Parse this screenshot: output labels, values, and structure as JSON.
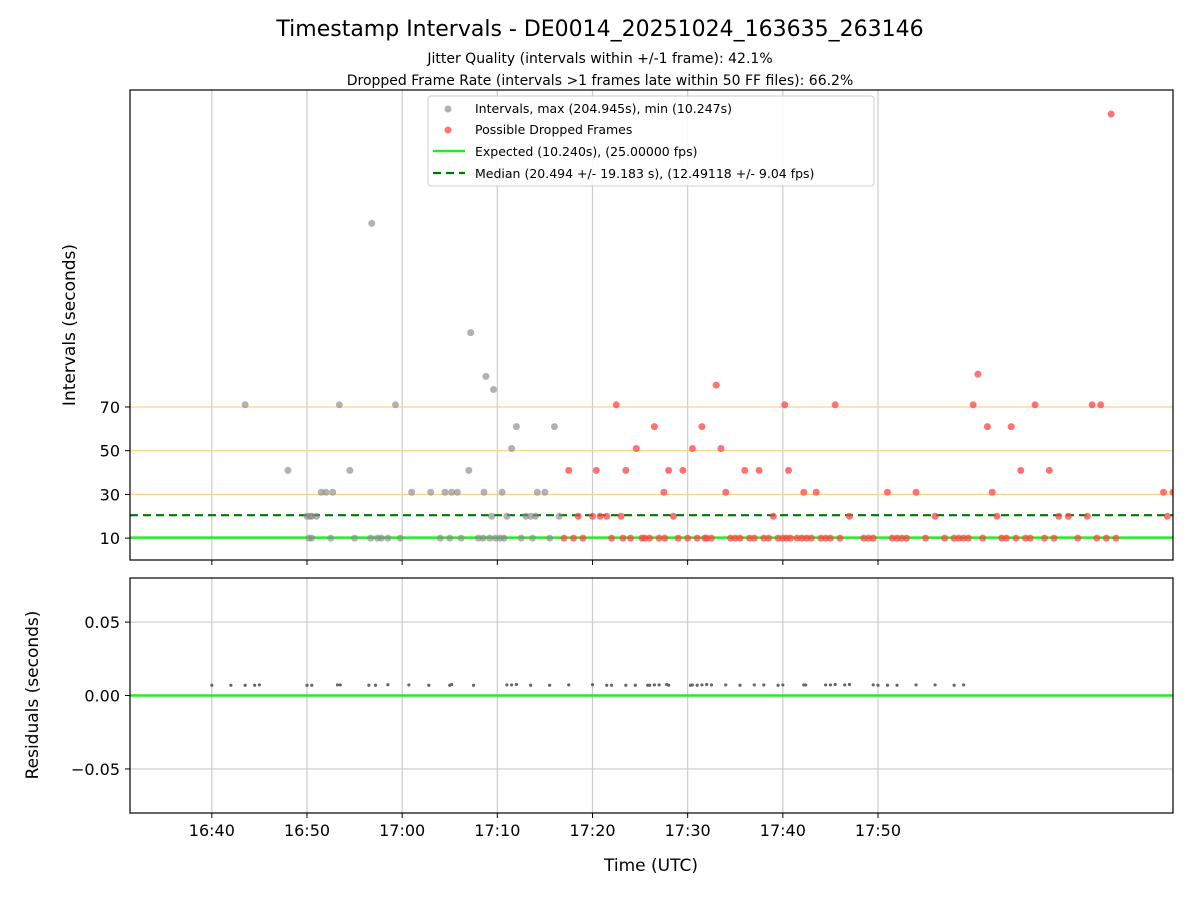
{
  "chart_data": [
    {
      "type": "scatter",
      "title": "Timestamp Intervals - DE0014_20251024_163635_263146",
      "subtitle_lines": [
        "Jitter Quality (intervals within +/-1 frame): 42.1%",
        "Dropped Frame Rate (intervals >1 frames late within 50 FF files): 66.2%"
      ],
      "ylabel": "Intervals (seconds)",
      "xlim": [
        -386,
        710
      ],
      "ylim": [
        0,
        215
      ],
      "yticks": [
        10,
        30,
        50,
        70
      ],
      "ytick_labels": [
        "10",
        "30",
        "50",
        "70"
      ],
      "grid": "vertical at x ticks",
      "reference_lines_y": [
        30,
        50,
        70
      ],
      "reference_line_color": "#ffd280",
      "legend_position": "top-center",
      "expected_line": {
        "name": "Expected (10.240s), (25.00000 fps)",
        "y": 10.24,
        "color": "#22ee22"
      },
      "median_line": {
        "name": "Median (20.494 +/- 19.183 s), (12.49118 +/- 9.04 fps)",
        "y": 20.494,
        "color": "#007700"
      },
      "series": [
        {
          "name": "Intervals, max (204.945s), min (10.247s)",
          "color": "#888888",
          "x": [
            -265,
            -220,
            -200,
            -195,
            -198,
            -197,
            -195,
            -190,
            -185,
            -180,
            -175,
            -173,
            -166,
            -155,
            -150,
            -133,
            -132,
            -126,
            -122,
            -115,
            -107,
            -102,
            -90,
            -70,
            -60,
            -55,
            -50,
            -48,
            -42,
            -38,
            -30,
            -28,
            -20,
            -15,
            -14,
            -12,
            -8,
            -6,
            -4,
            -2,
            3,
            5,
            7,
            10,
            15,
            20,
            25,
            30,
            35,
            37,
            40,
            42,
            50,
            55,
            60,
            65
          ],
          "y": [
            71,
            41,
            20,
            20,
            10,
            20,
            10,
            20,
            31,
            31,
            10,
            31,
            71,
            41,
            10,
            10,
            154,
            10,
            10,
            10,
            71,
            10,
            31,
            31,
            10,
            31,
            10,
            31,
            31,
            10,
            41,
            104,
            10,
            10,
            31,
            84,
            10,
            20,
            78,
            10,
            10,
            31,
            10,
            20,
            51,
            61,
            10,
            20,
            20,
            10,
            20,
            31,
            31,
            10,
            61,
            20
          ]
        },
        {
          "name": "Possible Dropped Frames",
          "color": "#ff4444",
          "x": [
            70,
            75,
            80,
            85,
            90,
            100,
            104,
            108,
            115,
            120,
            125,
            130,
            132,
            135,
            140,
            146,
            152,
            155,
            160,
            165,
            170,
            175,
            176,
            180,
            185,
            190,
            195,
            200,
            205,
            210,
            215,
            218,
            220,
            225,
            230,
            235,
            240,
            245,
            250,
            255,
            260,
            265,
            270,
            275,
            280,
            285,
            290,
            295,
            300,
            302,
            304,
            306,
            308,
            315,
            320,
            322,
            325,
            330,
            335,
            340,
            345,
            350,
            355,
            360,
            370,
            385,
            390,
            395,
            410,
            415,
            420,
            425,
            430,
            440,
            450,
            460,
            470,
            480,
            485,
            490,
            495,
            500,
            505,
            510,
            515,
            520,
            525,
            530,
            535,
            540,
            545,
            550,
            555,
            560,
            565,
            575,
            580,
            585,
            590,
            600,
            610,
            620,
            625,
            630,
            634,
            640,
            645,
            650,
            700,
            704,
            710
          ],
          "y": [
            10,
            41,
            10,
            20,
            10,
            20,
            41,
            20,
            20,
            10,
            71,
            20,
            10,
            41,
            10,
            51,
            10,
            10,
            10,
            61,
            10,
            31,
            10,
            41,
            20,
            10,
            41,
            10,
            51,
            10,
            61,
            10,
            10,
            10,
            80,
            51,
            31,
            10,
            10,
            10,
            41,
            10,
            10,
            41,
            10,
            10,
            20,
            10,
            10,
            71,
            10,
            41,
            10,
            10,
            10,
            31,
            10,
            10,
            31,
            10,
            10,
            10,
            71,
            10,
            20,
            10,
            10,
            10,
            31,
            10,
            10,
            10,
            10,
            31,
            10,
            20,
            10,
            10,
            10,
            10,
            10,
            71,
            85,
            10,
            61,
            31,
            20,
            10,
            10,
            61,
            10,
            41,
            10,
            10,
            71,
            10,
            41,
            10,
            20,
            20,
            10,
            20,
            71,
            10,
            71,
            10,
            204,
            10,
            31,
            20,
            31
          ]
        }
      ]
    },
    {
      "type": "scatter",
      "ylabel": "Residuals (seconds)",
      "xlabel": "Time (UTC)",
      "xlim": [
        -386,
        710
      ],
      "ylim": [
        -0.08,
        0.08
      ],
      "yticks": [
        0.05,
        0.0,
        -0.05
      ],
      "ytick_labels": [
        "0.05",
        "0.00",
        "−0.05"
      ],
      "xticks": [
        -300,
        -200,
        -100,
        0,
        100,
        200,
        300,
        400,
        500,
        600,
        700
      ],
      "xtick_labels": [
        "16:40",
        "16:50",
        "17:00",
        "17:10",
        "17:20",
        "17:30",
        "17:40",
        "17:50"
      ],
      "xtick_positions": [
        -300,
        -200,
        -100,
        0,
        100,
        200,
        300,
        400
      ],
      "grid": "both",
      "zero_line": {
        "y": 0,
        "color": "#22ee22"
      },
      "series": [
        {
          "name": "residuals",
          "color": "#666666",
          "x": [
            -300,
            -280,
            -265,
            -255,
            -250,
            -200,
            -195,
            -168,
            -165,
            -135,
            -128,
            -115,
            -93,
            -72,
            -50,
            -48,
            -25,
            10,
            15,
            20,
            35,
            55,
            75,
            100,
            115,
            120,
            135,
            145,
            158,
            160,
            165,
            170,
            178,
            180,
            203,
            205,
            210,
            215,
            220,
            225,
            240,
            255,
            270,
            280,
            295,
            300,
            322,
            324,
            345,
            350,
            355,
            365,
            370,
            395,
            400,
            410,
            420,
            440,
            460,
            480,
            490
          ],
          "y": [
            0.007,
            0.007,
            0.007,
            0.007,
            0.0072,
            0.007,
            0.007,
            0.0072,
            0.0072,
            0.007,
            0.007,
            0.0073,
            0.0072,
            0.007,
            0.007,
            0.0075,
            0.007,
            0.0072,
            0.0072,
            0.0075,
            0.007,
            0.007,
            0.0072,
            0.0073,
            0.007,
            0.007,
            0.007,
            0.007,
            0.007,
            0.007,
            0.0072,
            0.0072,
            0.0075,
            0.007,
            0.007,
            0.0072,
            0.007,
            0.0072,
            0.0075,
            0.0072,
            0.0072,
            0.007,
            0.0072,
            0.0072,
            0.007,
            0.0072,
            0.0072,
            0.0072,
            0.0072,
            0.0072,
            0.0075,
            0.0072,
            0.0075,
            0.0072,
            0.007,
            0.007,
            0.007,
            0.0072,
            0.0072,
            0.007,
            0.0072
          ]
        }
      ]
    }
  ]
}
